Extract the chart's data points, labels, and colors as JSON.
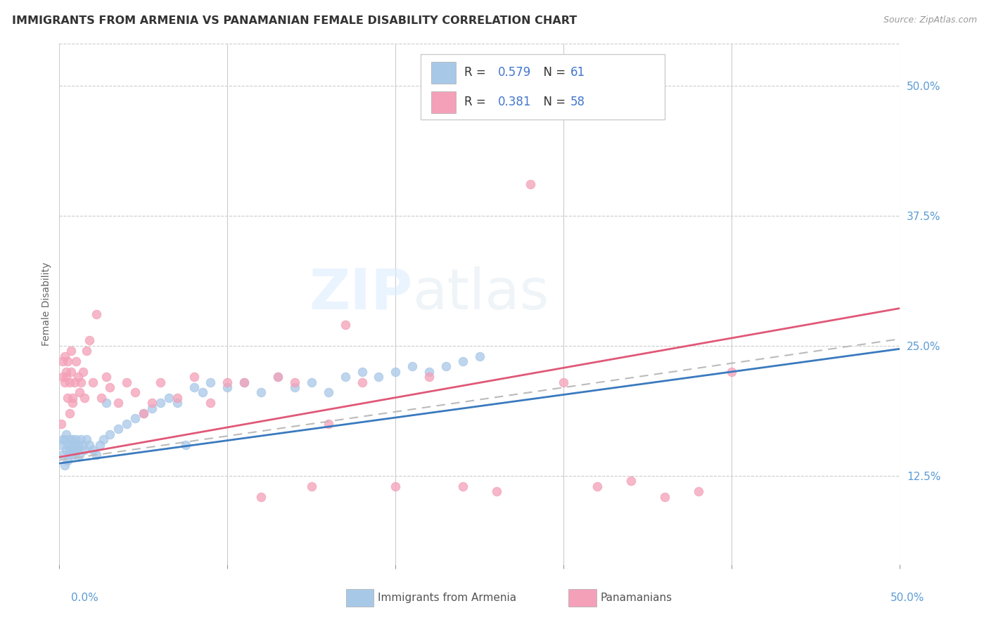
{
  "title": "IMMIGRANTS FROM ARMENIA VS PANAMANIAN FEMALE DISABILITY CORRELATION CHART",
  "source": "Source: ZipAtlas.com",
  "ylabel": "Female Disability",
  "right_yticks": [
    "50.0%",
    "37.5%",
    "25.0%",
    "12.5%"
  ],
  "right_ytick_vals": [
    0.5,
    0.375,
    0.25,
    0.125
  ],
  "xlim": [
    0.0,
    0.5
  ],
  "ylim": [
    0.04,
    0.54
  ],
  "legend_r1": "0.579",
  "legend_n1": "61",
  "legend_r2": "0.381",
  "legend_n2": "58",
  "color_blue": "#a8c8e8",
  "color_pink": "#f4a0b8",
  "color_line_blue": "#3a7abf",
  "color_line_pink": "#e05878",
  "color_right_ticks": "#5b9bd5",
  "armenia_x": [
    0.001,
    0.002,
    0.002,
    0.003,
    0.003,
    0.004,
    0.004,
    0.005,
    0.005,
    0.006,
    0.006,
    0.007,
    0.007,
    0.008,
    0.008,
    0.009,
    0.009,
    0.01,
    0.01,
    0.011,
    0.011,
    0.012,
    0.013,
    0.014,
    0.015,
    0.016,
    0.018,
    0.02,
    0.022,
    0.024,
    0.026,
    0.028,
    0.03,
    0.035,
    0.04,
    0.045,
    0.05,
    0.055,
    0.06,
    0.065,
    0.07,
    0.075,
    0.08,
    0.085,
    0.09,
    0.1,
    0.11,
    0.12,
    0.13,
    0.14,
    0.15,
    0.16,
    0.17,
    0.18,
    0.19,
    0.2,
    0.21,
    0.22,
    0.23,
    0.24,
    0.25
  ],
  "armenia_y": [
    0.155,
    0.145,
    0.16,
    0.135,
    0.16,
    0.15,
    0.165,
    0.14,
    0.155,
    0.15,
    0.16,
    0.145,
    0.155,
    0.15,
    0.16,
    0.145,
    0.155,
    0.15,
    0.16,
    0.155,
    0.15,
    0.145,
    0.16,
    0.155,
    0.15,
    0.16,
    0.155,
    0.15,
    0.145,
    0.155,
    0.16,
    0.195,
    0.165,
    0.17,
    0.175,
    0.18,
    0.185,
    0.19,
    0.195,
    0.2,
    0.195,
    0.155,
    0.21,
    0.205,
    0.215,
    0.21,
    0.215,
    0.205,
    0.22,
    0.21,
    0.215,
    0.205,
    0.22,
    0.225,
    0.22,
    0.225,
    0.23,
    0.225,
    0.23,
    0.235,
    0.24
  ],
  "panama_x": [
    0.001,
    0.002,
    0.002,
    0.003,
    0.003,
    0.004,
    0.004,
    0.005,
    0.005,
    0.006,
    0.006,
    0.007,
    0.007,
    0.008,
    0.008,
    0.009,
    0.01,
    0.011,
    0.012,
    0.013,
    0.014,
    0.015,
    0.016,
    0.018,
    0.02,
    0.022,
    0.025,
    0.028,
    0.03,
    0.035,
    0.04,
    0.045,
    0.05,
    0.055,
    0.06,
    0.07,
    0.08,
    0.09,
    0.1,
    0.11,
    0.12,
    0.13,
    0.14,
    0.15,
    0.16,
    0.17,
    0.18,
    0.2,
    0.22,
    0.24,
    0.26,
    0.28,
    0.3,
    0.32,
    0.34,
    0.36,
    0.38,
    0.4
  ],
  "panama_y": [
    0.175,
    0.22,
    0.235,
    0.24,
    0.215,
    0.225,
    0.22,
    0.2,
    0.235,
    0.185,
    0.215,
    0.225,
    0.245,
    0.2,
    0.195,
    0.215,
    0.235,
    0.22,
    0.205,
    0.215,
    0.225,
    0.2,
    0.245,
    0.255,
    0.215,
    0.28,
    0.2,
    0.22,
    0.21,
    0.195,
    0.215,
    0.205,
    0.185,
    0.195,
    0.215,
    0.2,
    0.22,
    0.195,
    0.215,
    0.215,
    0.105,
    0.22,
    0.215,
    0.115,
    0.175,
    0.27,
    0.215,
    0.115,
    0.22,
    0.115,
    0.11,
    0.405,
    0.215,
    0.115,
    0.12,
    0.105,
    0.11,
    0.225
  ]
}
